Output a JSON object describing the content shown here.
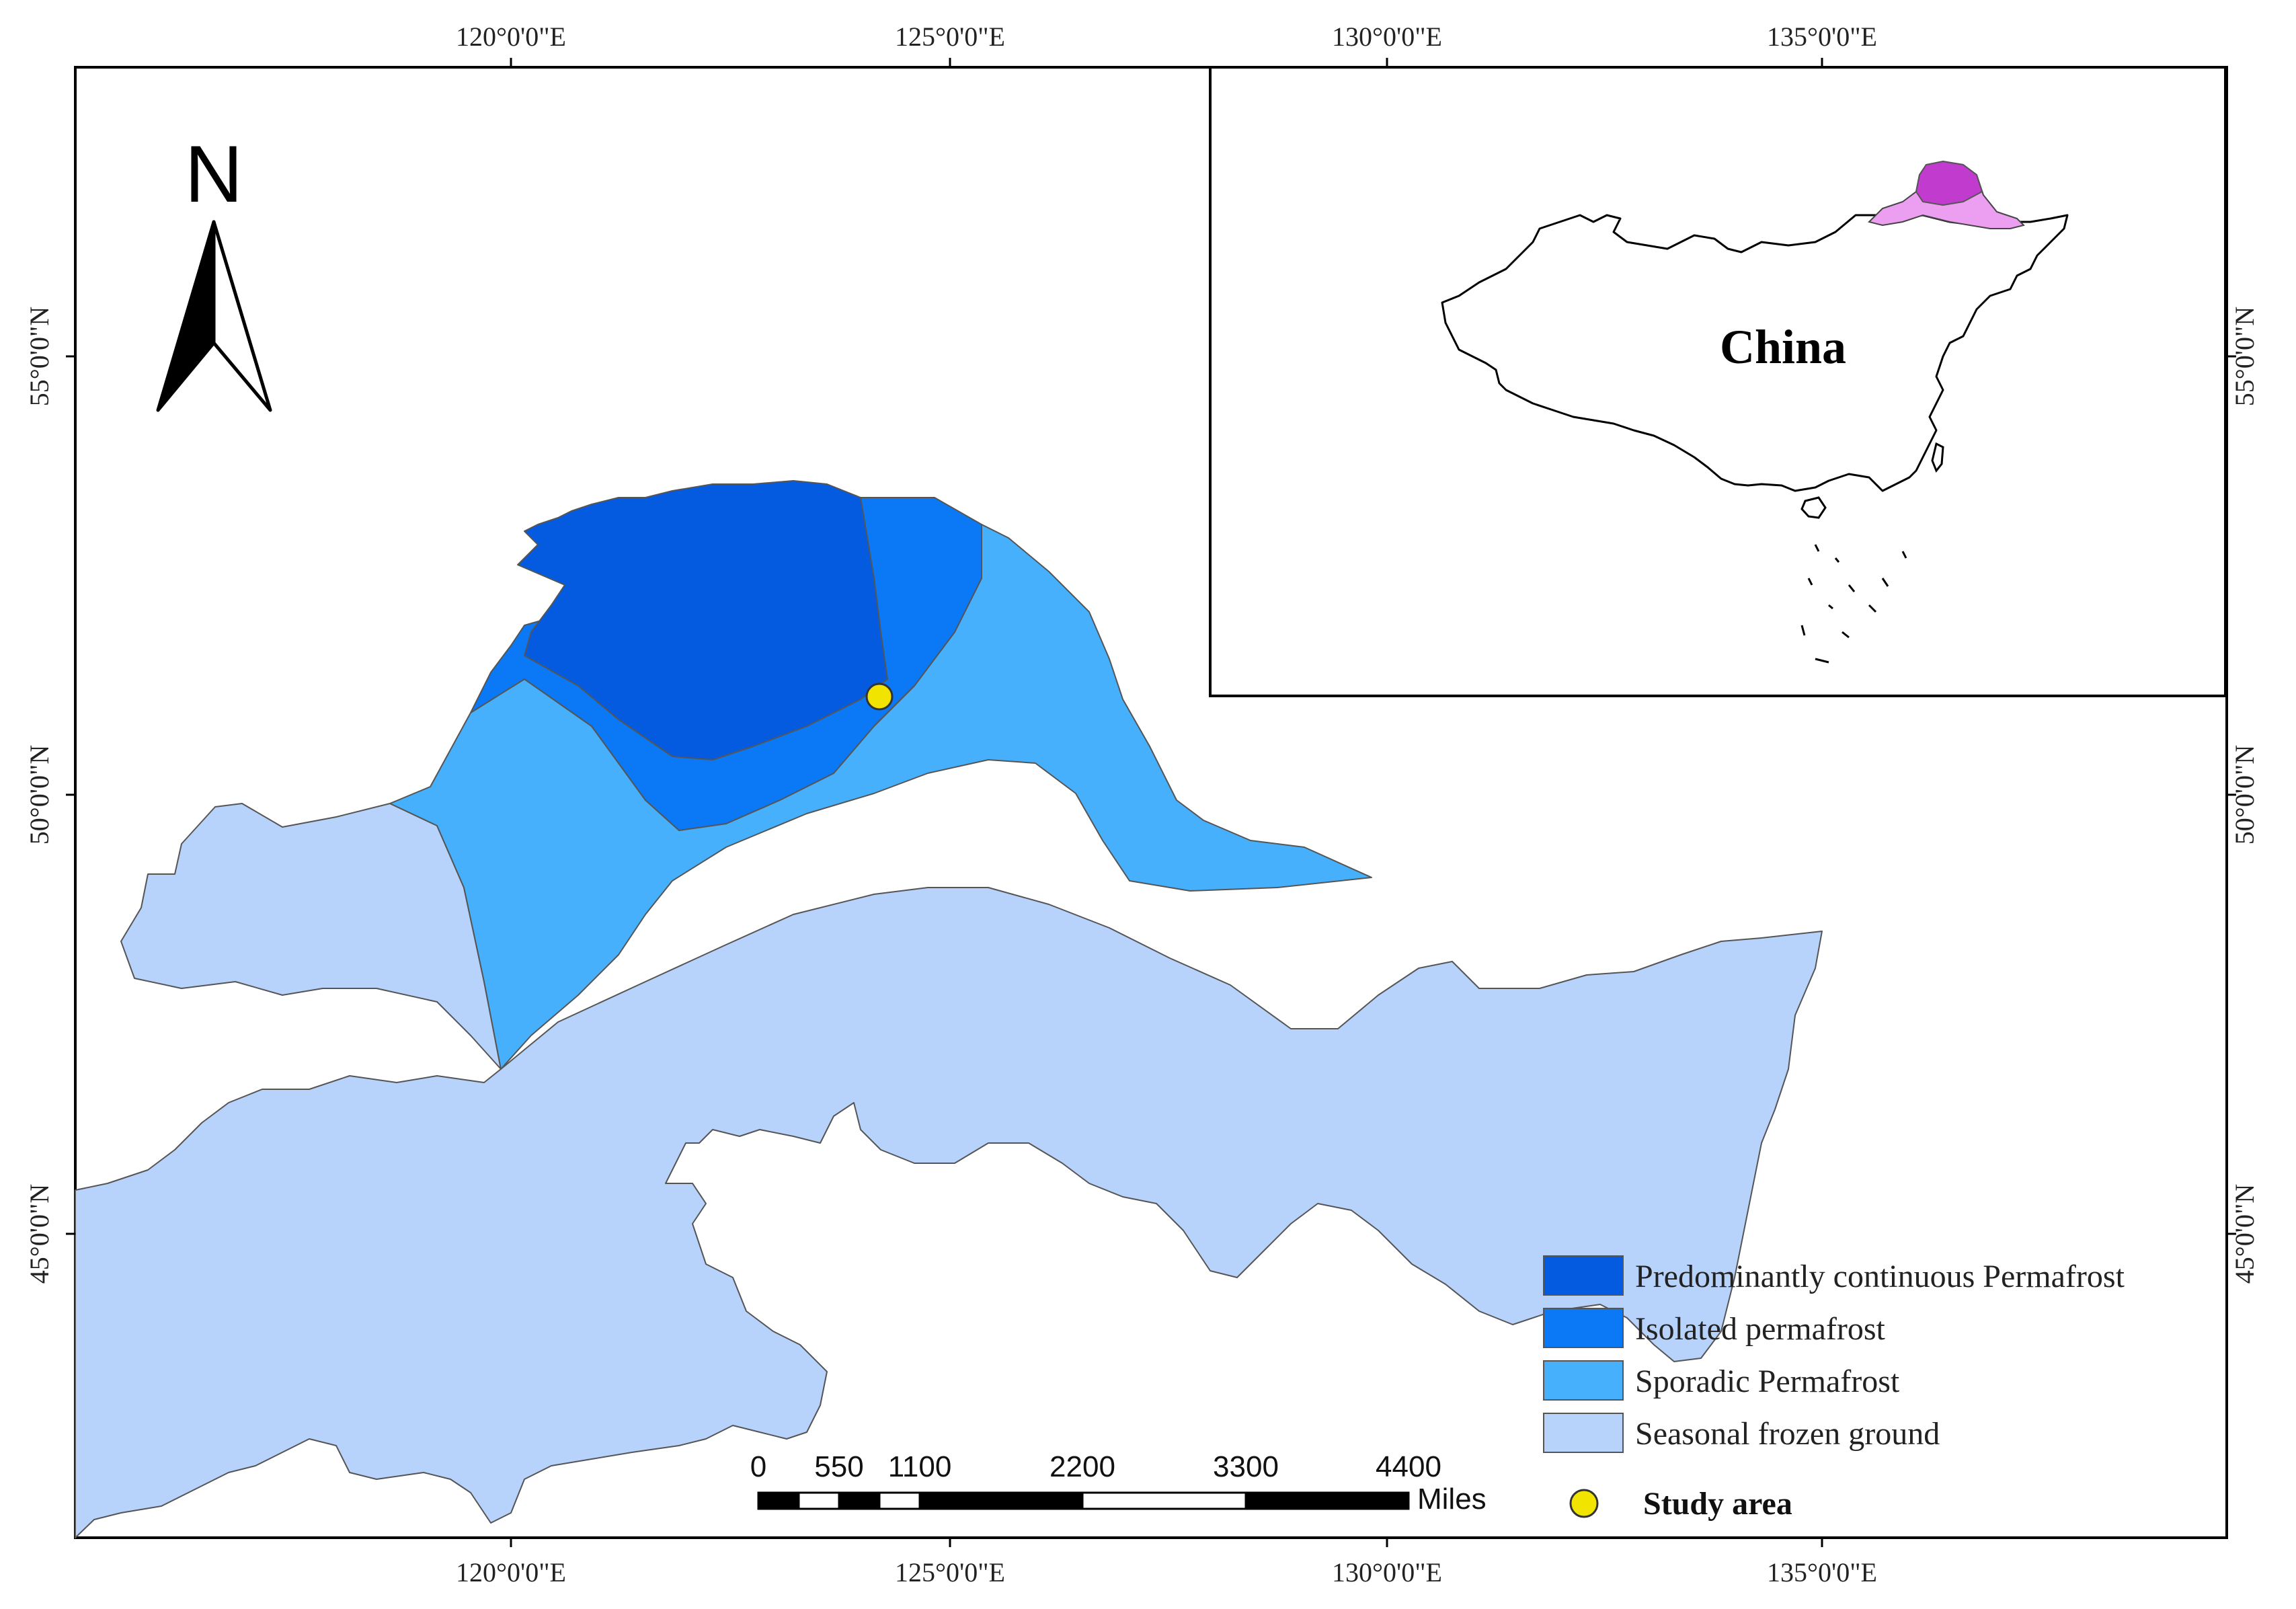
{
  "map": {
    "x_ticks": [
      "120°0'0\"E",
      "125°0'0\"E",
      "130°0'0\"E",
      "135°0'0\"E"
    ],
    "y_ticks": [
      "55°0'0\"N",
      "50°0'0\"N",
      "45°0'0\"N"
    ],
    "north_arrow": {
      "letter": "N",
      "icon": "north-arrow-icon"
    },
    "inset": {
      "label": "China",
      "highlight_color": "#c23bcf"
    },
    "legend": {
      "items": [
        {
          "label": "Predominantly continuous Permafrost",
          "color": "#045bdf"
        },
        {
          "label": "Isolated permafrost",
          "color": "#0b78f5"
        },
        {
          "label": "Sporadic Permafrost",
          "color": "#46b0fc"
        },
        {
          "label": "Seasonal frozen ground",
          "color": "#b7d2fb"
        }
      ],
      "study_area": {
        "label": "Study area",
        "color": "#f0e400",
        "icon": "study-area-point-icon"
      }
    },
    "scale_bar": {
      "ticks": [
        "0",
        "550",
        "1100",
        "2200",
        "3300",
        "4400"
      ],
      "unit": "Miles"
    }
  }
}
